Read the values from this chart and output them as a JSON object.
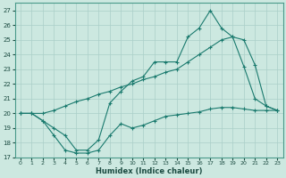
{
  "xlabel": "Humidex (Indice chaleur)",
  "bg_color": "#cce8e0",
  "grid_color": "#aacfc8",
  "line_color": "#1a7a6e",
  "xlim": [
    -0.5,
    23.5
  ],
  "ylim": [
    17,
    27.5
  ],
  "xticks": [
    0,
    1,
    2,
    3,
    4,
    5,
    6,
    7,
    8,
    9,
    10,
    11,
    12,
    13,
    14,
    15,
    16,
    17,
    18,
    19,
    20,
    21,
    22,
    23
  ],
  "yticks": [
    17,
    18,
    19,
    20,
    21,
    22,
    23,
    24,
    25,
    26,
    27
  ],
  "line1_x": [
    0,
    1,
    2,
    3,
    4,
    5,
    6,
    7,
    8,
    9,
    10,
    11,
    12,
    13,
    14,
    15,
    16,
    17,
    18,
    19,
    20,
    21,
    22,
    23
  ],
  "line1_y": [
    20.0,
    20.0,
    19.5,
    18.5,
    17.5,
    17.3,
    17.3,
    17.5,
    18.5,
    19.3,
    19.0,
    19.2,
    19.5,
    19.8,
    19.9,
    20.0,
    20.1,
    20.3,
    20.4,
    20.4,
    20.3,
    20.2,
    20.2,
    20.2
  ],
  "line2_x": [
    0,
    1,
    2,
    3,
    4,
    5,
    6,
    7,
    8,
    9,
    10,
    11,
    12,
    13,
    14,
    15,
    16,
    17,
    18,
    19,
    20,
    21,
    22,
    23
  ],
  "line2_y": [
    20.0,
    20.0,
    19.5,
    19.0,
    18.5,
    17.5,
    17.5,
    18.2,
    20.7,
    21.5,
    22.2,
    22.5,
    23.5,
    23.5,
    23.5,
    25.2,
    25.8,
    27.0,
    25.8,
    25.2,
    23.2,
    21.0,
    20.5,
    20.2
  ],
  "line3_x": [
    0,
    1,
    2,
    3,
    4,
    5,
    6,
    7,
    8,
    9,
    10,
    11,
    12,
    13,
    14,
    15,
    16,
    17,
    18,
    19,
    20,
    21,
    22,
    23
  ],
  "line3_y": [
    20.0,
    20.0,
    20.0,
    20.2,
    20.5,
    20.8,
    21.0,
    21.3,
    21.5,
    21.8,
    22.0,
    22.3,
    22.5,
    22.8,
    23.0,
    23.5,
    24.0,
    24.5,
    25.0,
    25.2,
    25.0,
    23.3,
    20.5,
    20.2
  ]
}
